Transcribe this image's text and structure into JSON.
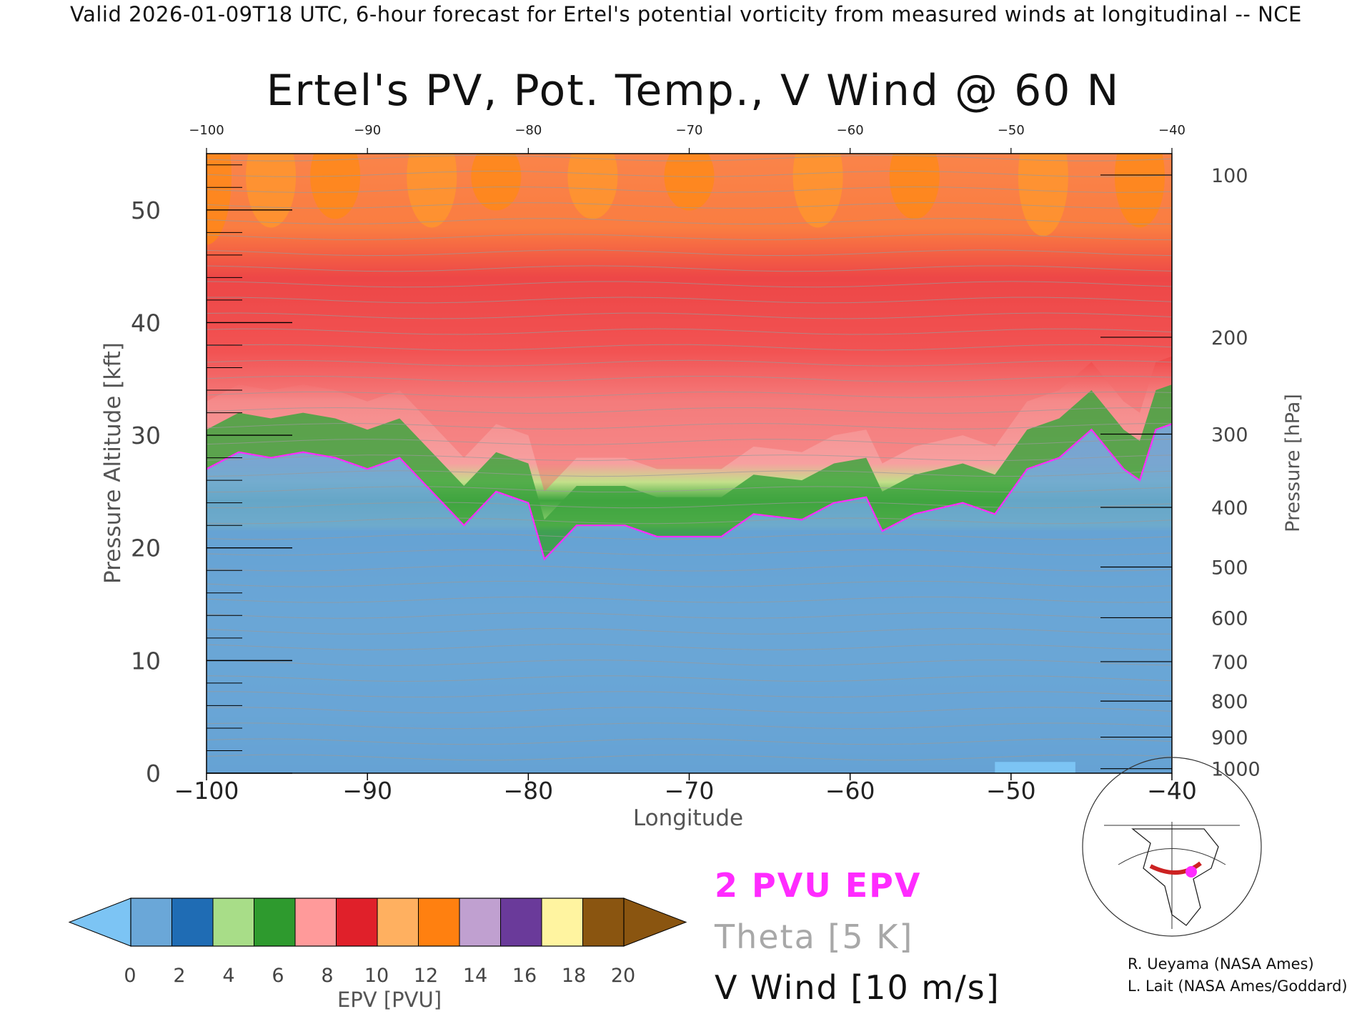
{
  "header": "Valid 2026-01-09T18 UTC, 6-hour forecast for Ertel's potential vorticity from measured winds at longitudinal -- NCE",
  "title": "Ertel's PV, Pot. Temp., V Wind @ 60 N",
  "chart_data": {
    "type": "heatmap",
    "title": "Ertel's PV, Pot. Temp., V Wind @ 60 N",
    "xlabel": "Longitude",
    "ylabel_left": "Pressure Altitude [kft]",
    "ylabel_right": "Pressure [hPa]",
    "xlim": [
      -100,
      -40
    ],
    "ylim": [
      0,
      55
    ],
    "x_ticks": [
      -100,
      -90,
      -80,
      -70,
      -60,
      -50,
      -40
    ],
    "x_tick_labels": [
      "−100",
      "−90",
      "−80",
      "−70",
      "−60",
      "−50",
      "−40"
    ],
    "top_tick_labels": [
      "−100",
      "−90",
      "−80",
      "−70",
      "−60",
      "−50",
      "−40"
    ],
    "y_ticks": [
      0,
      10,
      20,
      30,
      40,
      50
    ],
    "y_tick_labels": [
      "0",
      "10",
      "20",
      "30",
      "40",
      "50"
    ],
    "pressure_ticks": [
      {
        "label": "100",
        "kft": 53.1
      },
      {
        "label": "200",
        "kft": 38.7
      },
      {
        "label": "300",
        "kft": 30.1
      },
      {
        "label": "400",
        "kft": 23.6
      },
      {
        "label": "500",
        "kft": 18.3
      },
      {
        "label": "600",
        "kft": 13.8
      },
      {
        "label": "700",
        "kft": 9.9
      },
      {
        "label": "800",
        "kft": 6.4
      },
      {
        "label": "900",
        "kft": 3.2
      },
      {
        "label": "1000",
        "kft": 0.4
      }
    ],
    "tropopause_2pvu_kft": [
      {
        "lon": -100,
        "kft": 27
      },
      {
        "lon": -98,
        "kft": 28.5
      },
      {
        "lon": -96,
        "kft": 28
      },
      {
        "lon": -94,
        "kft": 28.5
      },
      {
        "lon": -92,
        "kft": 28
      },
      {
        "lon": -90,
        "kft": 27
      },
      {
        "lon": -88,
        "kft": 28
      },
      {
        "lon": -86,
        "kft": 25
      },
      {
        "lon": -84,
        "kft": 22
      },
      {
        "lon": -82,
        "kft": 25
      },
      {
        "lon": -80,
        "kft": 24
      },
      {
        "lon": -79,
        "kft": 19
      },
      {
        "lon": -77,
        "kft": 22
      },
      {
        "lon": -74,
        "kft": 22
      },
      {
        "lon": -72,
        "kft": 21
      },
      {
        "lon": -68,
        "kft": 21
      },
      {
        "lon": -66,
        "kft": 23
      },
      {
        "lon": -63,
        "kft": 22.5
      },
      {
        "lon": -61,
        "kft": 24
      },
      {
        "lon": -59,
        "kft": 24.5
      },
      {
        "lon": -58,
        "kft": 21.5
      },
      {
        "lon": -56,
        "kft": 23
      },
      {
        "lon": -53,
        "kft": 24
      },
      {
        "lon": -51,
        "kft": 23
      },
      {
        "lon": -49,
        "kft": 27
      },
      {
        "lon": -47,
        "kft": 28
      },
      {
        "lon": -45,
        "kft": 30.5
      },
      {
        "lon": -43,
        "kft": 27
      },
      {
        "lon": -42,
        "kft": 26
      },
      {
        "lon": -41,
        "kft": 30.5
      },
      {
        "lon": -40,
        "kft": 31
      }
    ],
    "colorbar": {
      "label": "EPV [PVU]",
      "ticks": [
        "0",
        "2",
        "4",
        "6",
        "8",
        "10",
        "12",
        "14",
        "16",
        "18",
        "20"
      ],
      "colors": [
        "#6aa7d8",
        "#1f6cb4",
        "#a8dd88",
        "#2e9a2e",
        "#ff9a9a",
        "#e0202a",
        "#ffb060",
        "#ff8010",
        "#c0a0d0",
        "#6a3a9a",
        "#fff4a0",
        "#8a5510"
      ],
      "under_color": "#7cc4f4",
      "over_color": "#8a5510"
    },
    "legend": {
      "pvu": "2 PVU EPV",
      "theta": "Theta [5 K]",
      "vwind": "V Wind [10 m/s]"
    }
  },
  "credits": {
    "line1": "R. Ueyama (NASA Ames)",
    "line2": "L. Lait (NASA Ames/Goddard)"
  }
}
